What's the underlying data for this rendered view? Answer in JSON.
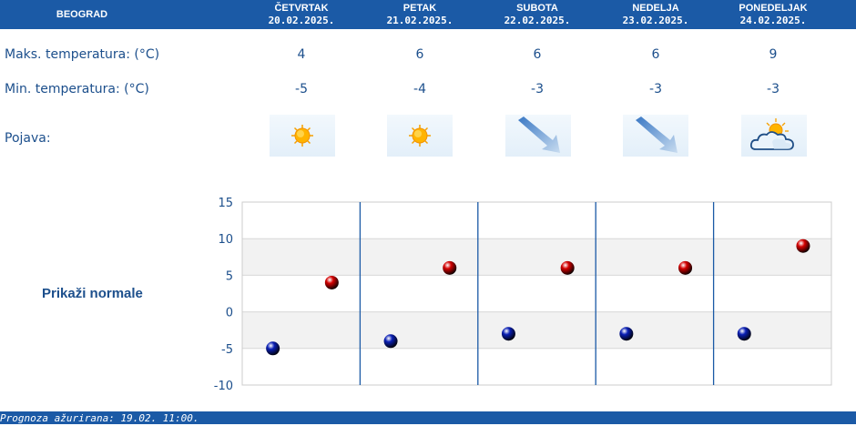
{
  "header": {
    "city": "BEOGRAD",
    "days": [
      {
        "name": "ČETVRTAK",
        "date": "20.02.2025."
      },
      {
        "name": "PETAK",
        "date": "21.02.2025."
      },
      {
        "name": "SUBOTA",
        "date": "22.02.2025."
      },
      {
        "name": "NEDELJA",
        "date": "23.02.2025."
      },
      {
        "name": "PONEDELJAK",
        "date": "24.02.2025."
      }
    ]
  },
  "rows": {
    "max_label": "Maks. temperatura: (°C)",
    "min_label": "Min. temperatura: (°C)",
    "weather_label": "Pojava:",
    "max_values": [
      "4",
      "6",
      "6",
      "6",
      "9"
    ],
    "min_values": [
      "-5",
      "-4",
      "-3",
      "-3",
      "-3"
    ],
    "icons": [
      "sun-icon",
      "sun-icon",
      "wind-arrow-icon",
      "wind-arrow-icon",
      "partly-cloudy-icon"
    ]
  },
  "normals_link": "Prikaži normale",
  "footer": {
    "updated": "Prognoza ažurirana:  19.02. 11:00."
  },
  "chart_data": {
    "type": "scatter",
    "ylim": [
      -10,
      15
    ],
    "yticks": [
      "15",
      "10",
      "5",
      "0",
      "-5",
      "-10"
    ],
    "series": [
      {
        "color": "#d40000",
        "values": [
          4,
          6,
          6,
          6,
          9
        ]
      },
      {
        "color": "#0a1fb5",
        "values": [
          -5,
          -4,
          -3,
          -3,
          -3
        ]
      }
    ],
    "grid": true
  }
}
